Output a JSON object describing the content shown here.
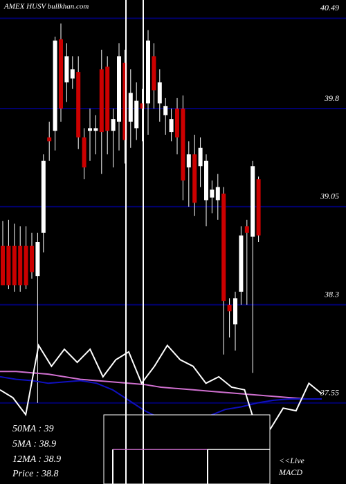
{
  "chart_data": {
    "type": "candlestick",
    "title": "AMEX  HUSV bullkhan.com",
    "ylim": [
      36.93,
      40.63
    ],
    "yticks": [
      37.55,
      38.3,
      39.05,
      39.8,
      40.49
    ],
    "grid": true,
    "grid_color": "#00006e",
    "up_color": "#ffffff",
    "down_color": "#cc0000",
    "open": [
      38.75,
      38.75,
      38.75,
      38.75,
      38.75,
      38.75,
      38.52,
      38.85,
      39.58,
      39.63,
      40.33,
      40.0,
      40.03,
      40.08,
      39.58,
      39.63,
      39.63,
      40.1,
      40.12,
      39.63,
      39.7,
      40.15,
      39.7,
      39.65,
      39.84,
      39.84,
      40.2,
      39.84,
      39.75,
      39.62,
      39.8,
      39.8,
      39.35,
      39.45,
      39.36,
      39.1,
      39.12,
      39.1,
      39.15,
      38.3,
      38.15,
      38.4,
      38.9,
      38.82,
      39.26
    ],
    "high": [
      38.94,
      38.95,
      38.92,
      38.9,
      38.9,
      38.85,
      38.85,
      39.45,
      39.7,
      40.35,
      40.45,
      40.3,
      40.2,
      40.2,
      39.65,
      39.8,
      39.75,
      40.25,
      40.2,
      39.8,
      40.3,
      40.25,
      40.1,
      40.0,
      39.95,
      40.4,
      40.3,
      40.1,
      39.88,
      39.8,
      39.88,
      39.9,
      39.55,
      39.6,
      39.58,
      39.45,
      39.25,
      39.3,
      39.2,
      38.35,
      38.4,
      38.9,
      38.95,
      39.4,
      39.28
    ],
    "low": [
      38.45,
      38.42,
      38.4,
      38.4,
      38.42,
      38.5,
      37.55,
      38.7,
      39.4,
      39.48,
      39.7,
      39.85,
      39.95,
      39.49,
      39.26,
      39.4,
      39.45,
      39.3,
      39.45,
      39.35,
      39.48,
      39.38,
      39.5,
      39.56,
      39.55,
      39.6,
      39.8,
      39.7,
      39.6,
      39.55,
      39.45,
      39.1,
      39.05,
      38.98,
      39.2,
      38.9,
      39.0,
      38.95,
      37.92,
      38.05,
      37.95,
      38.3,
      38.3,
      37.78,
      38.78
    ],
    "close": [
      38.45,
      38.45,
      38.45,
      38.45,
      38.45,
      38.55,
      38.78,
      39.4,
      39.55,
      40.32,
      39.8,
      40.2,
      40.1,
      39.58,
      39.35,
      39.65,
      39.65,
      39.62,
      39.63,
      39.72,
      40.2,
      39.56,
      39.92,
      39.86,
      39.8,
      40.32,
      39.94,
      40.0,
      39.82,
      39.72,
      39.58,
      39.25,
      39.45,
      39.08,
      39.5,
      39.4,
      39.18,
      39.2,
      38.33,
      38.25,
      38.35,
      38.83,
      38.85,
      39.36,
      38.83
    ],
    "lines": [
      {
        "color": "#d070d0",
        "values": [
          37.79,
          37.79,
          37.78,
          37.77,
          37.75,
          37.73,
          37.72,
          37.71,
          37.7,
          37.69,
          37.67,
          37.66,
          37.65,
          37.64,
          37.63,
          37.62,
          37.61,
          37.6,
          37.59,
          37.58,
          37.58
        ]
      },
      {
        "color": "#1010c0",
        "values": [
          37.75,
          37.73,
          37.72,
          37.7,
          37.71,
          37.72,
          37.7,
          37.65,
          37.57,
          37.49,
          37.43,
          37.4,
          37.4,
          37.45,
          37.5,
          37.52,
          37.55,
          37.57,
          37.58,
          37.58,
          37.58
        ]
      },
      {
        "color": "#ffffff",
        "values": [
          37.65,
          37.59,
          37.46,
          37.99,
          37.83,
          37.96,
          37.86,
          37.96,
          37.75,
          37.88,
          37.94,
          37.7,
          37.83,
          37.99,
          37.88,
          37.83,
          37.7,
          37.75,
          37.67,
          37.65,
          37.33,
          37.35,
          37.51,
          37.49,
          37.7,
          37.62
        ]
      }
    ],
    "legend_texts": [
      "50MA : 39",
      "5MA : 38.9",
      "12MA : 38.9",
      "Price   : 38.8"
    ],
    "live_text": "<<Live",
    "indicator_label": "MACD"
  }
}
